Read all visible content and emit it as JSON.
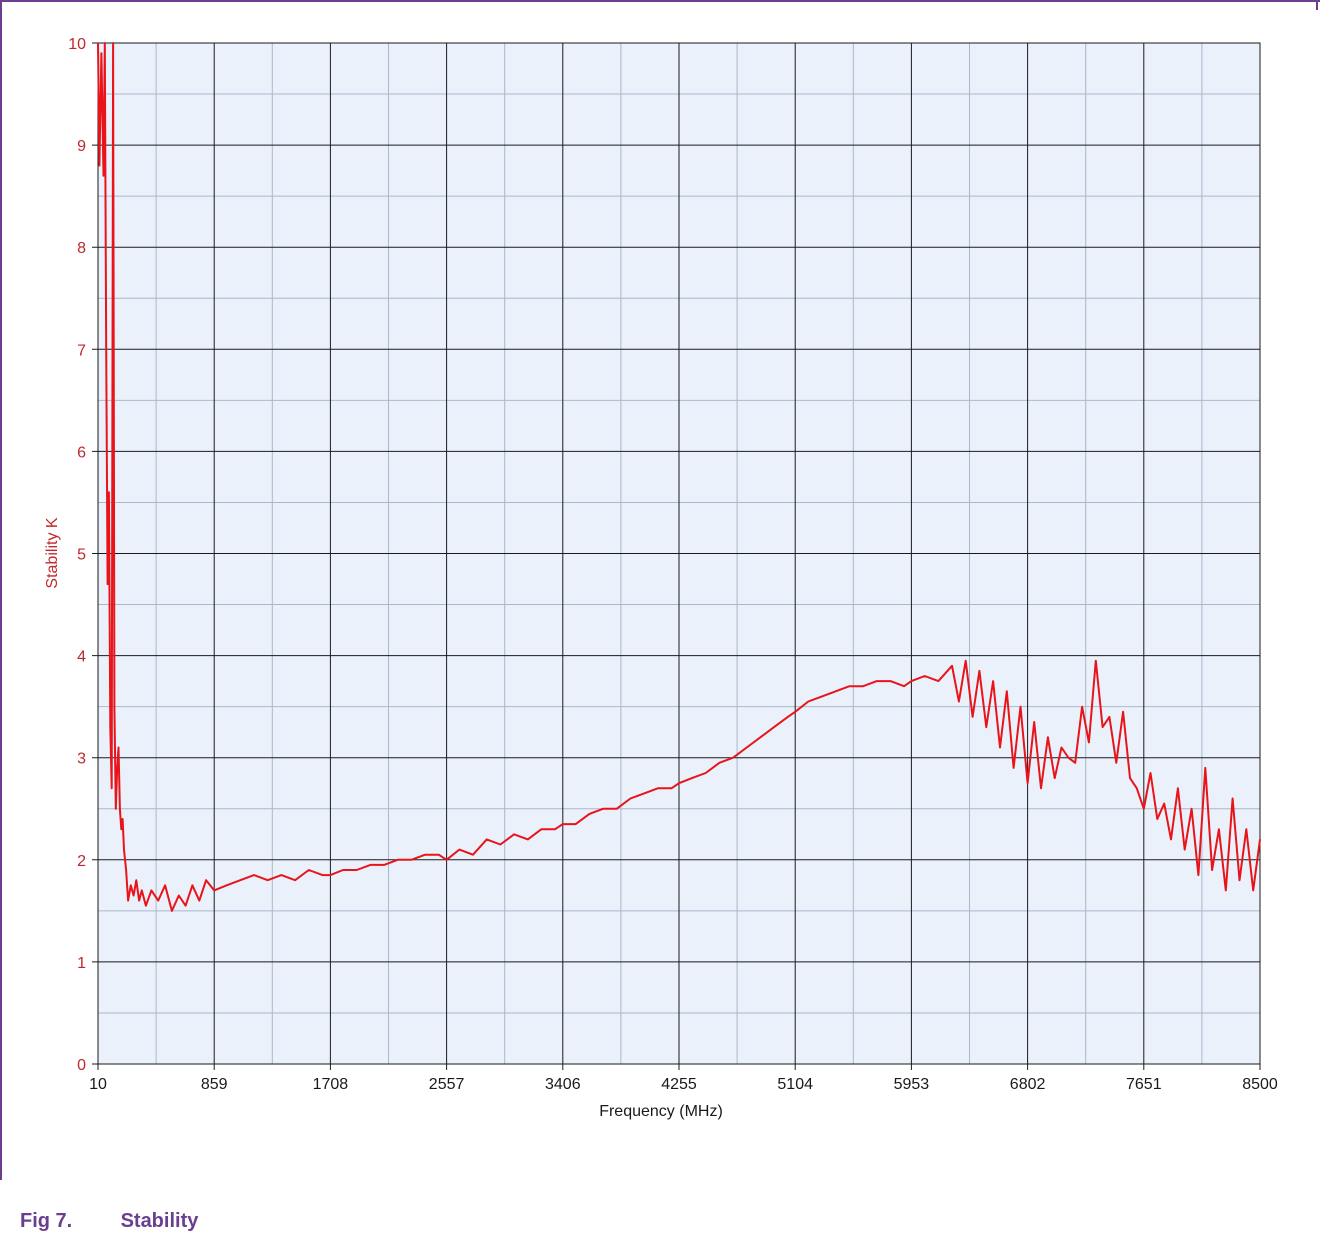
{
  "figure": {
    "number_label": "Fig 7.",
    "title": "Stability"
  },
  "chart_data": {
    "type": "line",
    "xlabel": "Frequency (MHz)",
    "ylabel": "Stability K",
    "xlim": [
      10,
      8500
    ],
    "ylim": [
      0,
      10
    ],
    "x_ticks": [
      "10",
      "859",
      "1708",
      "2557",
      "3406",
      "4255",
      "5104",
      "5953",
      "6802",
      "7651",
      "8500"
    ],
    "y_ticks": [
      "0",
      "1",
      "2",
      "3",
      "4",
      "5",
      "6",
      "7",
      "8",
      "9",
      "10"
    ],
    "grid": true,
    "legend": "none",
    "colors": {
      "series": "#e8141a",
      "ylabel": "#c0282d",
      "plot_bg": "#eaf1fb",
      "major_grid": "#1a1a1a",
      "minor_grid": "#a9b8cc"
    },
    "series": [
      {
        "x": [
          10,
          20,
          35,
          50,
          60,
          70,
          80,
          90,
          100,
          110,
          120,
          130,
          140,
          150,
          160,
          170,
          180,
          190,
          200,
          215,
          230,
          250,
          270,
          290,
          310,
          330,
          360,
          400,
          450,
          500,
          550,
          600,
          650,
          700,
          750,
          800,
          859,
          950,
          1050,
          1150,
          1250,
          1350,
          1450,
          1550,
          1650,
          1708,
          1800,
          1900,
          2000,
          2100,
          2200,
          2300,
          2400,
          2500,
          2557,
          2650,
          2750,
          2850,
          2950,
          3050,
          3150,
          3250,
          3350,
          3406,
          3500,
          3600,
          3700,
          3800,
          3900,
          4000,
          4100,
          4200,
          4255,
          4350,
          4450,
          4550,
          4650,
          4750,
          4850,
          4950,
          5050,
          5104,
          5200,
          5300,
          5400,
          5500,
          5600,
          5700,
          5800,
          5900,
          5953,
          6050,
          6150,
          6250,
          6300,
          6350,
          6400,
          6450,
          6500,
          6550,
          6600,
          6650,
          6700,
          6750,
          6802,
          6850,
          6900,
          6950,
          7000,
          7050,
          7100,
          7150,
          7200,
          7250,
          7300,
          7350,
          7400,
          7450,
          7500,
          7550,
          7600,
          7651,
          7700,
          7750,
          7800,
          7850,
          7900,
          7950,
          8000,
          8050,
          8100,
          8150,
          8200,
          8250,
          8300,
          8350,
          8400,
          8450,
          8500
        ],
        "y": [
          10,
          8.8,
          9.9,
          8.7,
          10,
          7.0,
          4.7,
          5.6,
          3.3,
          2.7,
          10,
          3.5,
          2.5,
          2.9,
          3.1,
          2.5,
          2.3,
          2.4,
          2.1,
          1.9,
          1.6,
          1.75,
          1.65,
          1.8,
          1.6,
          1.7,
          1.55,
          1.7,
          1.6,
          1.75,
          1.5,
          1.65,
          1.55,
          1.75,
          1.6,
          1.8,
          1.7,
          1.75,
          1.8,
          1.85,
          1.8,
          1.85,
          1.8,
          1.9,
          1.85,
          1.85,
          1.9,
          1.9,
          1.95,
          1.95,
          2.0,
          2.0,
          2.05,
          2.05,
          2.0,
          2.1,
          2.05,
          2.2,
          2.15,
          2.25,
          2.2,
          2.3,
          2.3,
          2.35,
          2.35,
          2.45,
          2.5,
          2.5,
          2.6,
          2.65,
          2.7,
          2.7,
          2.75,
          2.8,
          2.85,
          2.95,
          3.0,
          3.1,
          3.2,
          3.3,
          3.4,
          3.45,
          3.55,
          3.6,
          3.65,
          3.7,
          3.7,
          3.75,
          3.75,
          3.7,
          3.75,
          3.8,
          3.75,
          3.9,
          3.55,
          3.95,
          3.4,
          3.85,
          3.3,
          3.75,
          3.1,
          3.65,
          2.9,
          3.5,
          2.75,
          3.35,
          2.7,
          3.2,
          2.8,
          3.1,
          3.0,
          2.95,
          3.5,
          3.15,
          3.95,
          3.3,
          3.4,
          2.95,
          3.45,
          2.8,
          2.7,
          2.5,
          2.85,
          2.4,
          2.55,
          2.2,
          2.7,
          2.1,
          2.5,
          1.85,
          2.9,
          1.9,
          2.3,
          1.7,
          2.6,
          1.8,
          2.3,
          1.7,
          2.2
        ]
      }
    ]
  }
}
